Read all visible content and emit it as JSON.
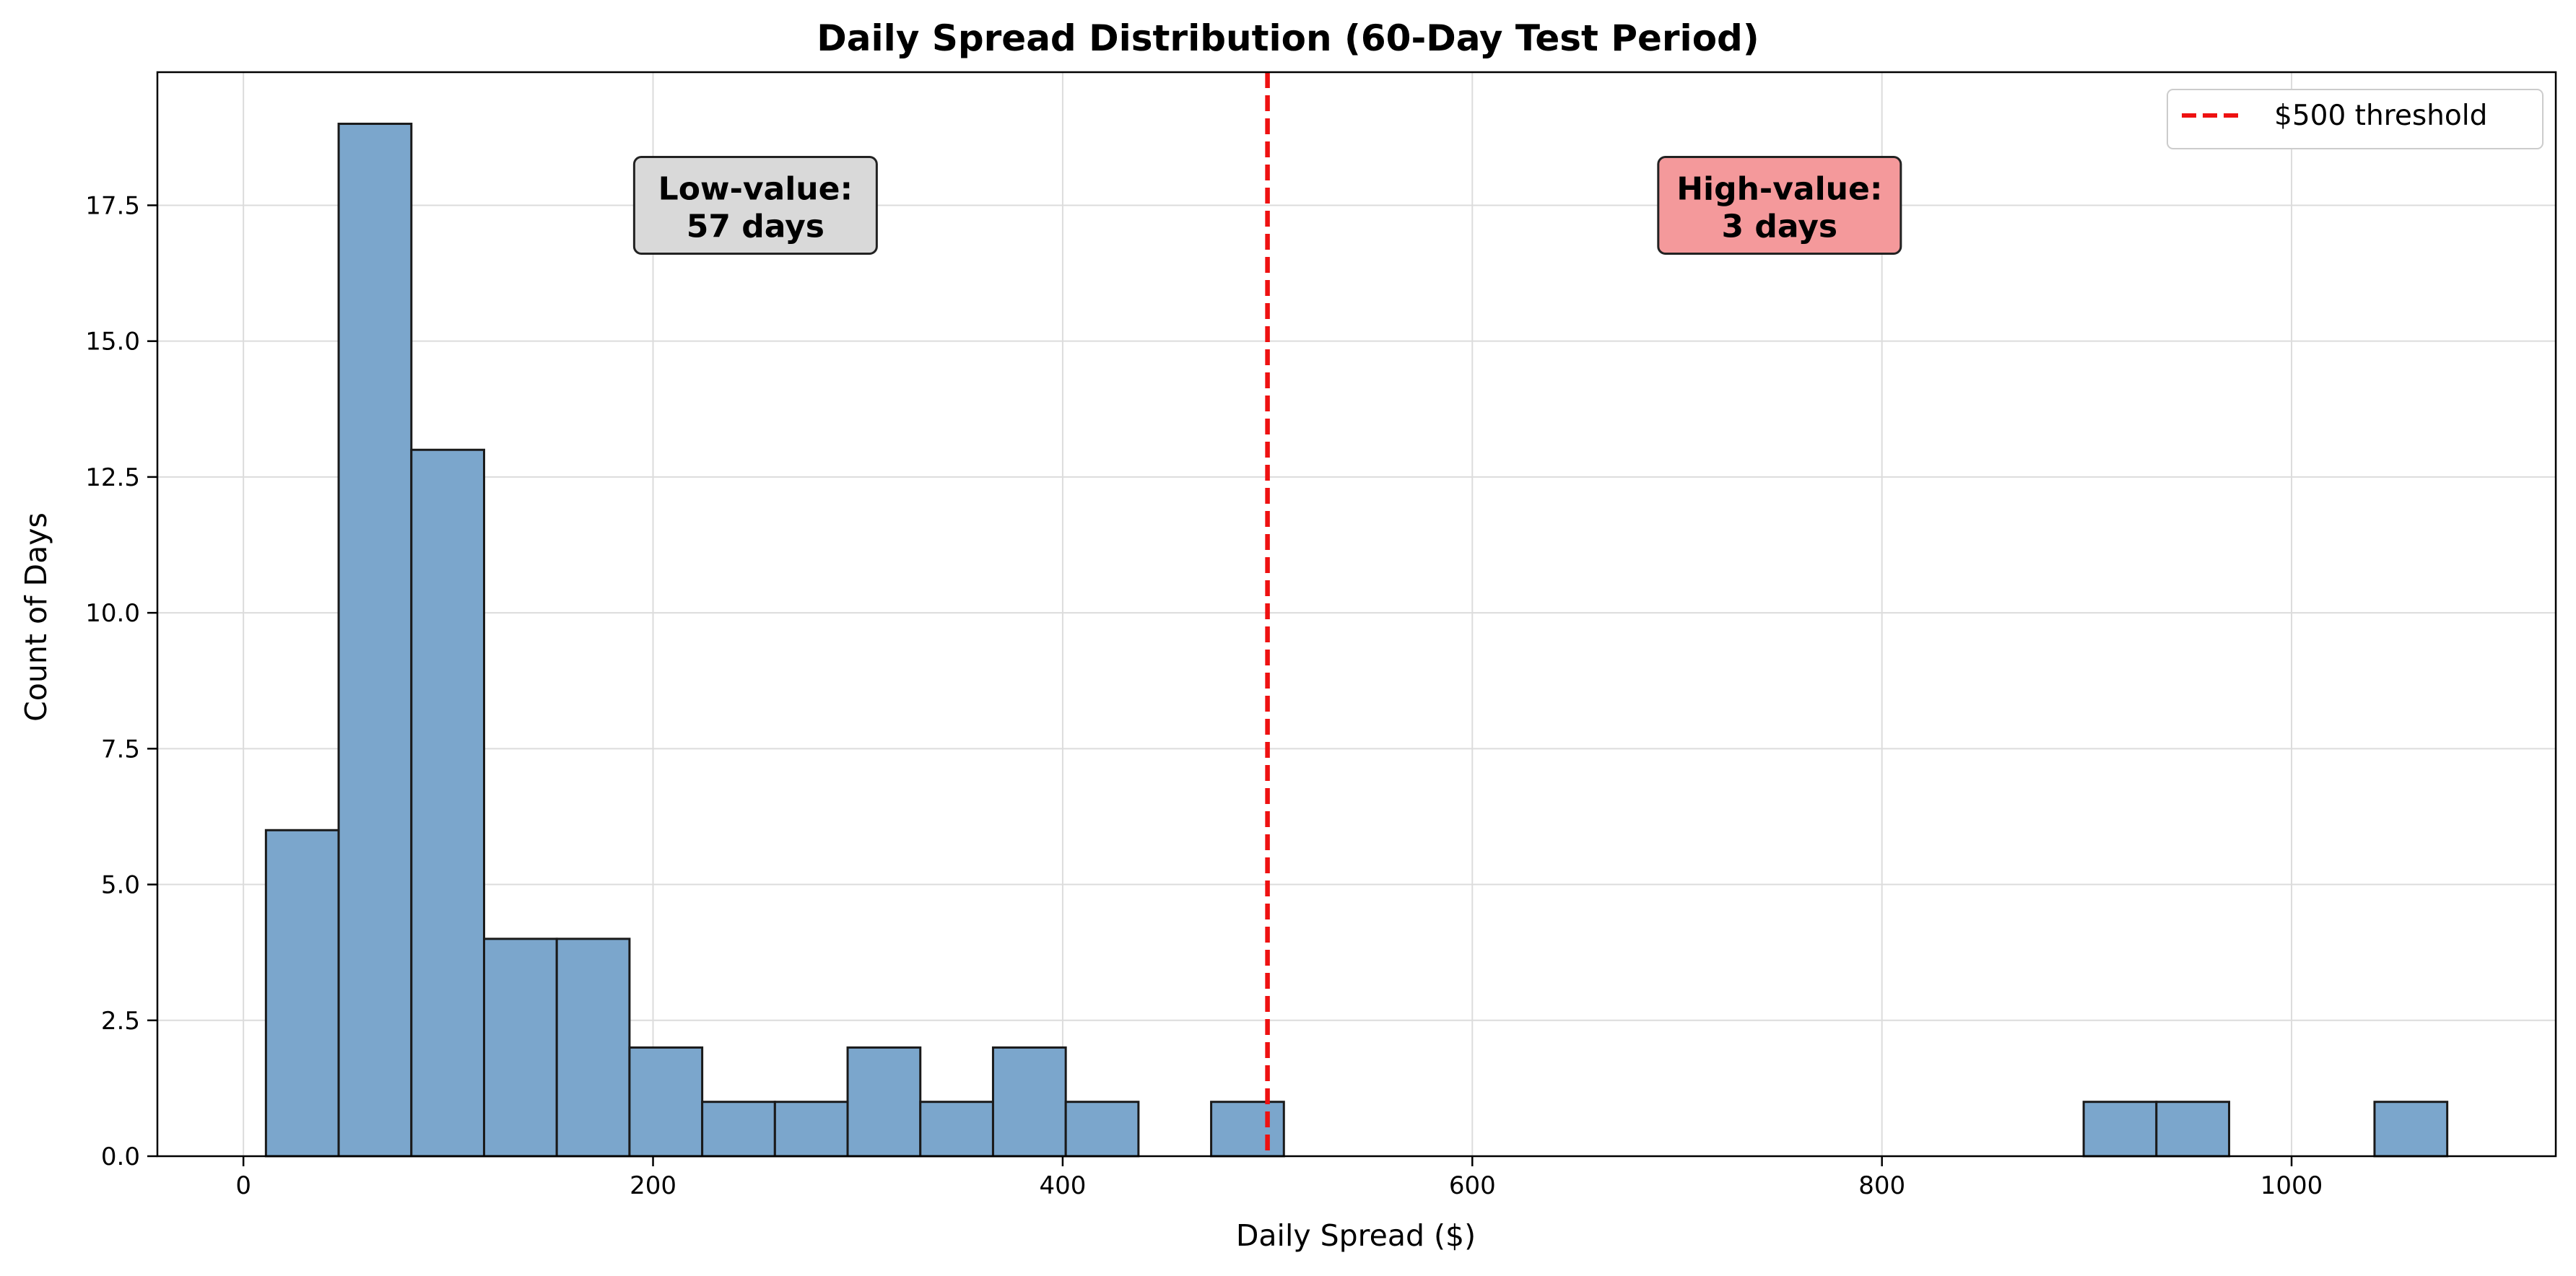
{
  "chart_data": {
    "type": "bar",
    "title": "Daily Spread Distribution (60-Day Test Period)",
    "xlabel": "Daily Spread ($)",
    "ylabel": "Count of Days",
    "xlim": [
      -42,
      1129
    ],
    "ylim": [
      0,
      19.95
    ],
    "xticks": [
      0,
      200,
      400,
      600,
      800,
      1000
    ],
    "xtick_labels": [
      "0",
      "200",
      "400",
      "600",
      "800",
      "1000"
    ],
    "yticks": [
      0,
      2.5,
      5,
      7.5,
      10,
      12.5,
      15,
      17.5
    ],
    "ytick_labels": [
      "0.0",
      "2.5",
      "5.0",
      "7.5",
      "10.0",
      "12.5",
      "15.0",
      "17.5"
    ],
    "grid": true,
    "bin_width": 35.5,
    "bins": [
      {
        "start": 11,
        "end": 46.5,
        "count": 6
      },
      {
        "start": 46.5,
        "end": 82,
        "count": 19
      },
      {
        "start": 82,
        "end": 117.5,
        "count": 13
      },
      {
        "start": 117.5,
        "end": 153,
        "count": 4
      },
      {
        "start": 153,
        "end": 188.5,
        "count": 4
      },
      {
        "start": 188.5,
        "end": 224,
        "count": 2
      },
      {
        "start": 224,
        "end": 259.5,
        "count": 1
      },
      {
        "start": 259.5,
        "end": 295,
        "count": 1
      },
      {
        "start": 295,
        "end": 330.5,
        "count": 2
      },
      {
        "start": 330.5,
        "end": 366,
        "count": 1
      },
      {
        "start": 366,
        "end": 401.5,
        "count": 2
      },
      {
        "start": 401.5,
        "end": 437,
        "count": 1
      },
      {
        "start": 472.5,
        "end": 508,
        "count": 1
      },
      {
        "start": 898.5,
        "end": 934,
        "count": 1
      },
      {
        "start": 934,
        "end": 969.5,
        "count": 1
      },
      {
        "start": 1040.5,
        "end": 1076,
        "count": 1
      }
    ],
    "bar_color": "#7BA6CC",
    "bar_edge_color": "#1a1a1a",
    "threshold": {
      "x": 500,
      "label": "$500 threshold",
      "color": "#ee1111"
    },
    "legend": {
      "position": "top-right"
    },
    "annotations": [
      {
        "line1": "Low-value:",
        "line2": "57 days",
        "x": 250,
        "y": 17.5,
        "fill": "#d9d9d9"
      },
      {
        "line1": "High-value:",
        "line2": "3 days",
        "x": 750,
        "y": 17.5,
        "fill": "#f4999b"
      }
    ]
  }
}
